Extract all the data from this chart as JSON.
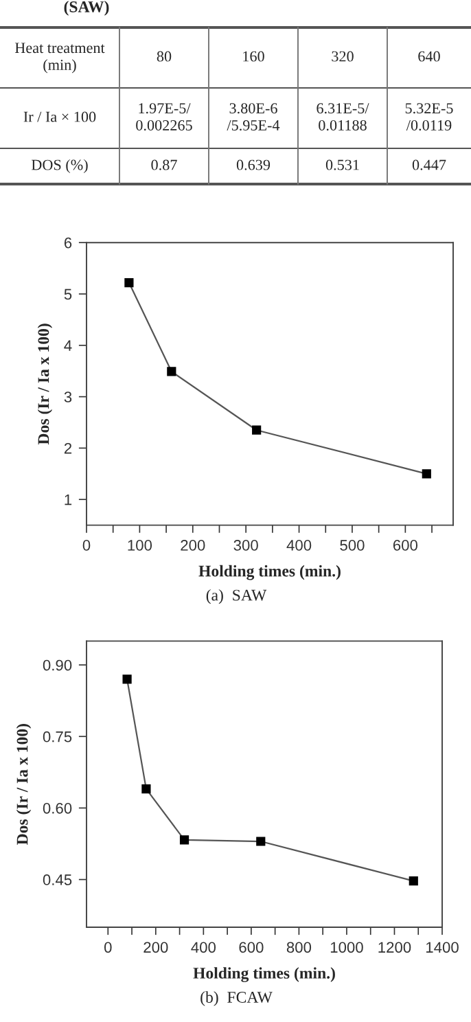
{
  "chart_data": [
    {
      "type": "other",
      "title": "(SAW)",
      "annotations": [
        "Heat treatment (min)",
        "80",
        "160",
        "320",
        "640",
        "Ir / Ia × 100",
        "1.97E-5/ 0.002265",
        "3.80E-6 /5.95E-4",
        "6.31E-5/ 0.01188",
        "5.32E-5 /0.0119",
        "DOS (%)",
        "0.87",
        "0.639",
        "0.531",
        "0.447"
      ]
    },
    {
      "type": "line",
      "x": [
        80,
        160,
        320,
        640
      ],
      "values": [
        5.22,
        3.49,
        2.35,
        1.5
      ],
      "color": "#555555",
      "marker": "square",
      "line_style": "solid",
      "xlabel": "Holding times (min.)",
      "ylabel": "Dos (Ir / Ia x 100)",
      "xlim": [
        0,
        690
      ],
      "ylim": [
        0.5,
        6
      ],
      "xticks": [
        0,
        {
          "value": 50,
          "label": null
        },
        100,
        {
          "value": 150,
          "label": null
        },
        200,
        {
          "value": 250,
          "label": null
        },
        300,
        {
          "value": 350,
          "label": null
        },
        400,
        {
          "value": 450,
          "label": null
        },
        500,
        {
          "value": 550,
          "label": null
        },
        600,
        {
          "value": 650,
          "label": null
        }
      ],
      "yticks": [
        1,
        2,
        3,
        4,
        5,
        6
      ],
      "grid": false,
      "legend": false,
      "annotations": [
        "(a)  SAW"
      ]
    },
    {
      "type": "line",
      "x": [
        80,
        160,
        320,
        640,
        1280
      ],
      "values": [
        0.87,
        0.64,
        0.533,
        0.53,
        0.447
      ],
      "color": "#555555",
      "marker": "square",
      "line_style": "solid",
      "xlabel": "Holding times (min.)",
      "ylabel": "Dos (Ir / Ia x 100)",
      "xlim": [
        -90,
        1400
      ],
      "ylim": [
        0.35,
        0.95
      ],
      "xticks": [
        0,
        {
          "value": 100,
          "label": null
        },
        200,
        {
          "value": 300,
          "label": null
        },
        400,
        {
          "value": 500,
          "label": null
        },
        600,
        {
          "value": 700,
          "label": null
        },
        800,
        {
          "value": 900,
          "label": null
        },
        1000,
        {
          "value": 1100,
          "label": null
        },
        1200,
        {
          "value": 1300,
          "label": null
        },
        1400
      ],
      "yticks": [
        {
          "value": 0.45,
          "label": "0.45"
        },
        {
          "value": 0.6,
          "label": "0.60"
        },
        {
          "value": 0.75,
          "label": "0.75"
        },
        {
          "value": 0.9,
          "label": "0.90"
        }
      ],
      "grid": false,
      "legend": false,
      "annotations": [
        "(b)  FCAW"
      ]
    }
  ]
}
